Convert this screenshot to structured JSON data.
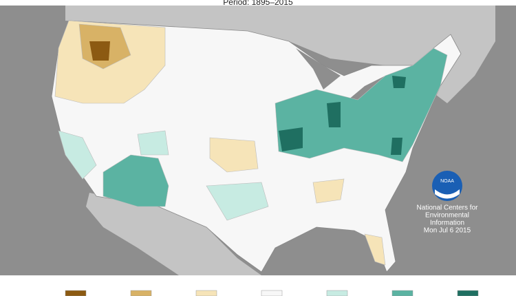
{
  "header": {
    "title": "Period: 1895–2015"
  },
  "logo": {
    "text": "NOAA"
  },
  "info": {
    "lines": [
      "National Centers for",
      "Environmental",
      "Information",
      "Mon Jul 6 2015"
    ]
  },
  "legend": {
    "colors": [
      "#8c5a12",
      "#d8b266",
      "#f6e4b8",
      "#f7f7f7",
      "#c7ebe2",
      "#5bb3a2",
      "#1f6f61"
    ]
  }
}
